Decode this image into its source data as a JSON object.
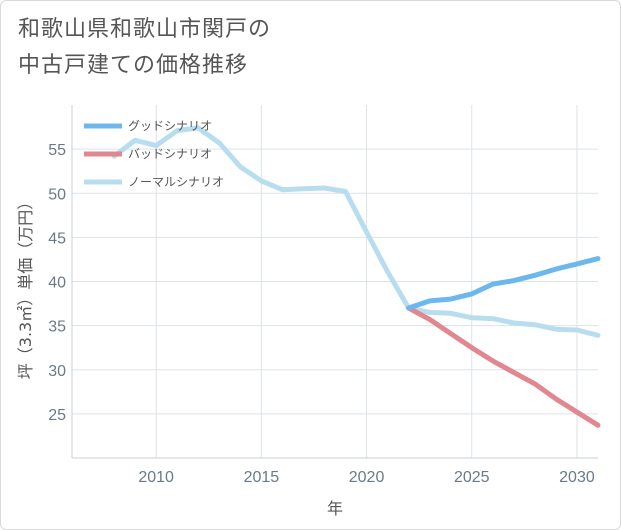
{
  "title_line1": "和歌山県和歌山市関戸の",
  "title_line2": "中古戸建ての価格推移",
  "chart_data": {
    "type": "line",
    "xlabel": "年",
    "ylabel": "坪（3.3㎡）単価（万円）",
    "xlim": [
      2006,
      2031
    ],
    "ylim": [
      20,
      60
    ],
    "xticks": [
      2010,
      2015,
      2020,
      2025,
      2030
    ],
    "yticks": [
      25,
      30,
      35,
      40,
      45,
      50,
      55
    ],
    "grid": true,
    "legend_position": "top-left",
    "series": [
      {
        "name": "グッドシナリオ",
        "color": "#6cb8ee",
        "points": [
          [
            2022,
            37.0
          ],
          [
            2023,
            37.8
          ],
          [
            2024,
            38.0
          ],
          [
            2025,
            38.6
          ],
          [
            2026,
            39.7
          ],
          [
            2027,
            40.1
          ],
          [
            2028,
            40.7
          ],
          [
            2029,
            41.4
          ],
          [
            2030,
            42.0
          ],
          [
            2031,
            42.6
          ]
        ]
      },
      {
        "name": "バッドシナリオ",
        "color": "#e08790",
        "points": [
          [
            2022,
            37.0
          ],
          [
            2023,
            35.7
          ],
          [
            2024,
            34.1
          ],
          [
            2025,
            32.5
          ],
          [
            2026,
            31.0
          ],
          [
            2027,
            29.7
          ],
          [
            2028,
            28.4
          ],
          [
            2029,
            26.7
          ],
          [
            2030,
            25.2
          ],
          [
            2031,
            23.7
          ]
        ]
      },
      {
        "name": "ノーマルシナリオ",
        "color": "#b8ddef",
        "points": [
          [
            2008,
            54.2
          ],
          [
            2009,
            56.0
          ],
          [
            2010,
            55.4
          ],
          [
            2011,
            57.1
          ],
          [
            2012,
            57.4
          ],
          [
            2013,
            55.7
          ],
          [
            2014,
            53.0
          ],
          [
            2015,
            51.4
          ],
          [
            2016,
            50.4
          ],
          [
            2017,
            50.5
          ],
          [
            2018,
            50.6
          ],
          [
            2019,
            50.2
          ],
          [
            2020,
            45.6
          ],
          [
            2021,
            41.1
          ],
          [
            2022,
            37.0
          ],
          [
            2023,
            36.5
          ],
          [
            2024,
            36.4
          ],
          [
            2025,
            35.9
          ],
          [
            2026,
            35.8
          ],
          [
            2027,
            35.3
          ],
          [
            2028,
            35.1
          ],
          [
            2029,
            34.6
          ],
          [
            2030,
            34.5
          ],
          [
            2031,
            33.9
          ]
        ]
      }
    ]
  }
}
